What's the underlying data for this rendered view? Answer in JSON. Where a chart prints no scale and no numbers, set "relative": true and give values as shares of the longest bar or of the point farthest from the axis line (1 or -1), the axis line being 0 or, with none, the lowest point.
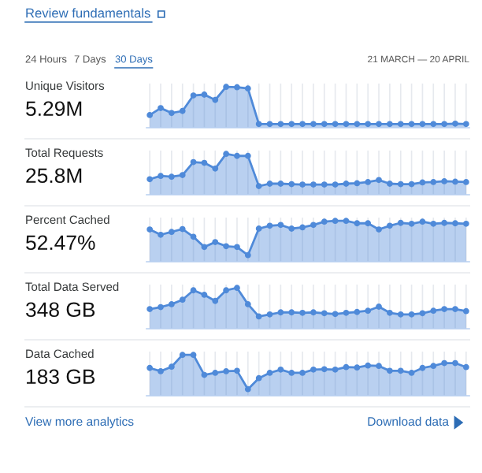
{
  "chart_data": [
    {
      "type": "area",
      "title": "Unique Visitors",
      "subtitle": "5.29M",
      "relative": true,
      "grid": "x",
      "marker": "circle",
      "annotations": [
        "Review fundamentals",
        "24 Hours",
        "7 Days",
        "30 Days",
        "21 MARCH — 20 APRIL"
      ],
      "categories": [
        null,
        null,
        null,
        null,
        null,
        null,
        null,
        null,
        null,
        null,
        null,
        null,
        null,
        null,
        null,
        null,
        null,
        null,
        null,
        null,
        null,
        null,
        null,
        null,
        null,
        null,
        null,
        null,
        null,
        null
      ],
      "series": [
        {
          "color": "#4f8ad9",
          "values": [
            0.31,
            0.48,
            0.36,
            0.41,
            0.79,
            0.81,
            0.68,
            1.0,
            0.99,
            0.96,
            0.09,
            0.09,
            0.09,
            0.09,
            0.09,
            0.09,
            0.09,
            0.09,
            0.09,
            0.09,
            0.09,
            0.09,
            0.09,
            0.09,
            0.09,
            0.09,
            0.09,
            0.09,
            0.1,
            0.09
          ]
        }
      ]
    },
    {
      "type": "area",
      "title": "Total Requests",
      "subtitle": "25.8M",
      "relative": true,
      "grid": "x",
      "marker": "circle",
      "categories": [
        null,
        null,
        null,
        null,
        null,
        null,
        null,
        null,
        null,
        null,
        null,
        null,
        null,
        null,
        null,
        null,
        null,
        null,
        null,
        null,
        null,
        null,
        null,
        null,
        null,
        null,
        null,
        null,
        null,
        null
      ],
      "series": [
        {
          "color": "#4f8ad9",
          "values": [
            0.38,
            0.46,
            0.44,
            0.48,
            0.8,
            0.78,
            0.64,
            1.0,
            0.95,
            0.95,
            0.21,
            0.27,
            0.27,
            0.26,
            0.25,
            0.25,
            0.25,
            0.25,
            0.27,
            0.28,
            0.31,
            0.36,
            0.27,
            0.26,
            0.26,
            0.3,
            0.31,
            0.33,
            0.32,
            0.31
          ]
        }
      ]
    },
    {
      "type": "area",
      "title": "Percent Cached",
      "subtitle": "52.47%",
      "relative": true,
      "grid": "x",
      "marker": "circle",
      "categories": [
        null,
        null,
        null,
        null,
        null,
        null,
        null,
        null,
        null,
        null,
        null,
        null,
        null,
        null,
        null,
        null,
        null,
        null,
        null,
        null,
        null,
        null,
        null,
        null,
        null,
        null,
        null,
        null,
        null,
        null
      ],
      "series": [
        {
          "color": "#4f8ad9",
          "values": [
            0.79,
            0.66,
            0.73,
            0.8,
            0.61,
            0.36,
            0.48,
            0.38,
            0.36,
            0.16,
            0.81,
            0.88,
            0.9,
            0.81,
            0.84,
            0.9,
            0.98,
            1.0,
            1.0,
            0.94,
            0.94,
            0.79,
            0.88,
            0.95,
            0.93,
            0.98,
            0.93,
            0.95,
            0.94,
            0.93
          ]
        }
      ]
    },
    {
      "type": "area",
      "title": "Total Data Served",
      "subtitle": "348 GB",
      "relative": true,
      "grid": "x",
      "marker": "circle",
      "categories": [
        null,
        null,
        null,
        null,
        null,
        null,
        null,
        null,
        null,
        null,
        null,
        null,
        null,
        null,
        null,
        null,
        null,
        null,
        null,
        null,
        null,
        null,
        null,
        null,
        null,
        null,
        null,
        null,
        null,
        null
      ],
      "series": [
        {
          "color": "#4f8ad9",
          "values": [
            0.48,
            0.53,
            0.6,
            0.71,
            0.94,
            0.83,
            0.68,
            0.94,
            1.0,
            0.6,
            0.3,
            0.35,
            0.4,
            0.4,
            0.39,
            0.4,
            0.38,
            0.36,
            0.39,
            0.41,
            0.44,
            0.54,
            0.39,
            0.35,
            0.35,
            0.38,
            0.44,
            0.48,
            0.48,
            0.43
          ]
        }
      ]
    },
    {
      "type": "area",
      "title": "Data Cached",
      "subtitle": "183 GB",
      "relative": true,
      "grid": "x",
      "marker": "circle",
      "annotations": [
        "View more analytics",
        "Download data"
      ],
      "categories": [
        null,
        null,
        null,
        null,
        null,
        null,
        null,
        null,
        null,
        null,
        null,
        null,
        null,
        null,
        null,
        null,
        null,
        null,
        null,
        null,
        null,
        null,
        null,
        null,
        null,
        null,
        null,
        null,
        null,
        null
      ],
      "series": [
        {
          "color": "#4f8ad9",
          "values": [
            0.68,
            0.6,
            0.71,
            1.0,
            1.0,
            0.51,
            0.56,
            0.6,
            0.61,
            0.16,
            0.43,
            0.56,
            0.64,
            0.56,
            0.56,
            0.64,
            0.65,
            0.64,
            0.7,
            0.69,
            0.74,
            0.73,
            0.61,
            0.61,
            0.56,
            0.68,
            0.73,
            0.8,
            0.8,
            0.7
          ]
        }
      ]
    }
  ]
}
